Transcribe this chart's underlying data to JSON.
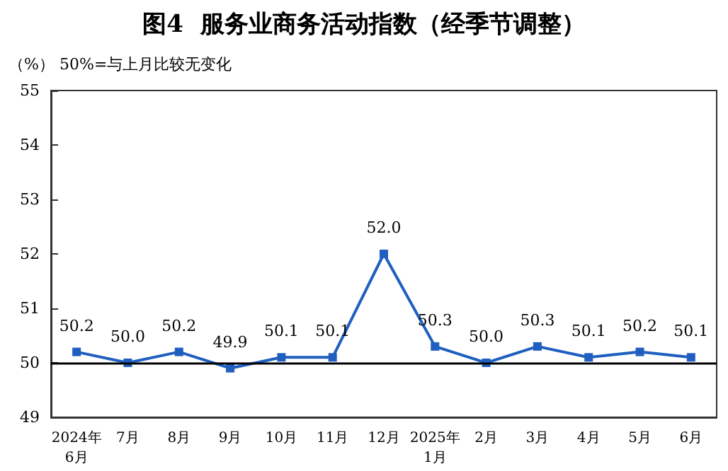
{
  "chart_data": {
    "type": "line",
    "title": "图4  服务业商务活动指数（经季节调整）",
    "ylabel": "（%）",
    "annotations": [
      "50%=与上月比较无变化"
    ],
    "categories": [
      "2024年\n6月",
      "7月",
      "8月",
      "9月",
      "10月",
      "11月",
      "12月",
      "2025年\n1月",
      "2月",
      "3月",
      "4月",
      "5月",
      "6月"
    ],
    "series": [
      {
        "color": "#1f5fbf",
        "values": [
          50.2,
          50.0,
          50.2,
          49.9,
          50.1,
          50.1,
          52.0,
          50.3,
          50.0,
          50.3,
          50.1,
          50.2,
          50.1
        ],
        "value_labels": [
          "50.2",
          "50.0",
          "50.2",
          "49.9",
          "50.1",
          "50.1",
          "52.0",
          "50.3",
          "50.0",
          "50.3",
          "50.1",
          "50.2",
          "50.1"
        ]
      }
    ],
    "ylim": [
      49,
      55
    ],
    "yticks": [
      49,
      50,
      51,
      52,
      53,
      54,
      55
    ],
    "grid": false,
    "marker": "square",
    "line_style": "solid",
    "ref_lines": [
      {
        "axis": "y",
        "value": 50,
        "color": "#000000"
      }
    ]
  }
}
